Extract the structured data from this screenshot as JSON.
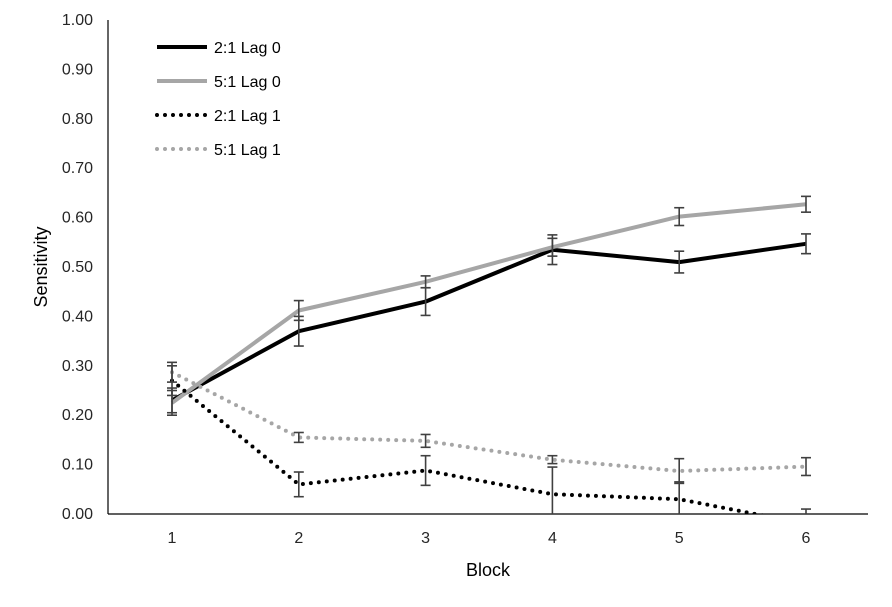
{
  "chart_data": {
    "type": "line",
    "title": "",
    "xlabel": "Block",
    "ylabel": "Sensitivity",
    "categories": [
      "1",
      "2",
      "3",
      "4",
      "5",
      "6"
    ],
    "ylim": [
      0,
      1
    ],
    "yticks": [
      "0.00",
      "0.10",
      "0.20",
      "0.30",
      "0.40",
      "0.50",
      "0.60",
      "0.70",
      "0.80",
      "0.90",
      "1.00"
    ],
    "legend_position": "top-left",
    "series": [
      {
        "name": "2:1 Lag 0",
        "color": "#000000",
        "style": "solid",
        "values": [
          0.23,
          0.37,
          0.43,
          0.535,
          0.51,
          0.547
        ],
        "errors": [
          0.025,
          0.03,
          0.028,
          0.03,
          0.022,
          0.02
        ]
      },
      {
        "name": "5:1 Lag 0",
        "color": "#a6a6a6",
        "style": "solid",
        "values": [
          0.225,
          0.412,
          0.47,
          0.54,
          0.602,
          0.627
        ],
        "errors": [
          0.025,
          0.02,
          0.012,
          0.018,
          0.018,
          0.016
        ]
      },
      {
        "name": "2:1 Lag 1",
        "color": "#000000",
        "style": "dotted",
        "values": [
          0.27,
          0.06,
          0.088,
          0.04,
          0.03,
          -0.02
        ],
        "errors": [
          0.03,
          0.025,
          0.03,
          0.055,
          0.035,
          0.03
        ]
      },
      {
        "name": "5:1 Lag 1",
        "color": "#a6a6a6",
        "style": "dotted",
        "values": [
          0.287,
          0.155,
          0.148,
          0.11,
          0.087,
          0.096
        ],
        "errors": [
          0.02,
          0.01,
          0.013,
          0.008,
          0.025,
          0.018
        ]
      }
    ]
  }
}
